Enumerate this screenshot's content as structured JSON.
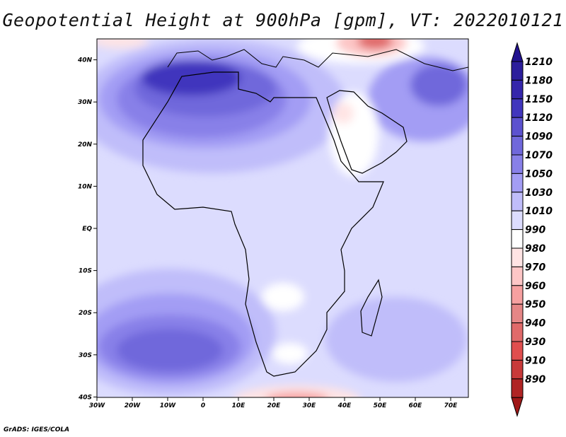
{
  "title": "Geopotential Height at 900hPa [gpm], VT: 2022010121",
  "credit": "GrADS: IGES/COLA",
  "x_ticks": [
    "30W",
    "20W",
    "10W",
    "0",
    "10E",
    "20E",
    "30E",
    "40E",
    "50E",
    "60E",
    "70E"
  ],
  "y_ticks": [
    "40N",
    "30N",
    "20N",
    "10N",
    "EQ",
    "10S",
    "20S",
    "30S",
    "40S"
  ],
  "colorbar": {
    "labels": [
      "1210",
      "1180",
      "1150",
      "1120",
      "1090",
      "1070",
      "1050",
      "1030",
      "1010",
      "990",
      "980",
      "970",
      "960",
      "950",
      "940",
      "930",
      "910",
      "890"
    ],
    "colors": [
      "#22128f",
      "#2c1e9c",
      "#3526ab",
      "#4136bd",
      "#5c52cf",
      "#7068db",
      "#8880e8",
      "#a39df4",
      "#c0bdfa",
      "#dcdcfe",
      "#ffffff",
      "#ffe4e4",
      "#fdc6c6",
      "#f6a0a0",
      "#e58686",
      "#e06a6a",
      "#e04e4e",
      "#c83a3a",
      "#b02424",
      "#a01818"
    ]
  }
}
